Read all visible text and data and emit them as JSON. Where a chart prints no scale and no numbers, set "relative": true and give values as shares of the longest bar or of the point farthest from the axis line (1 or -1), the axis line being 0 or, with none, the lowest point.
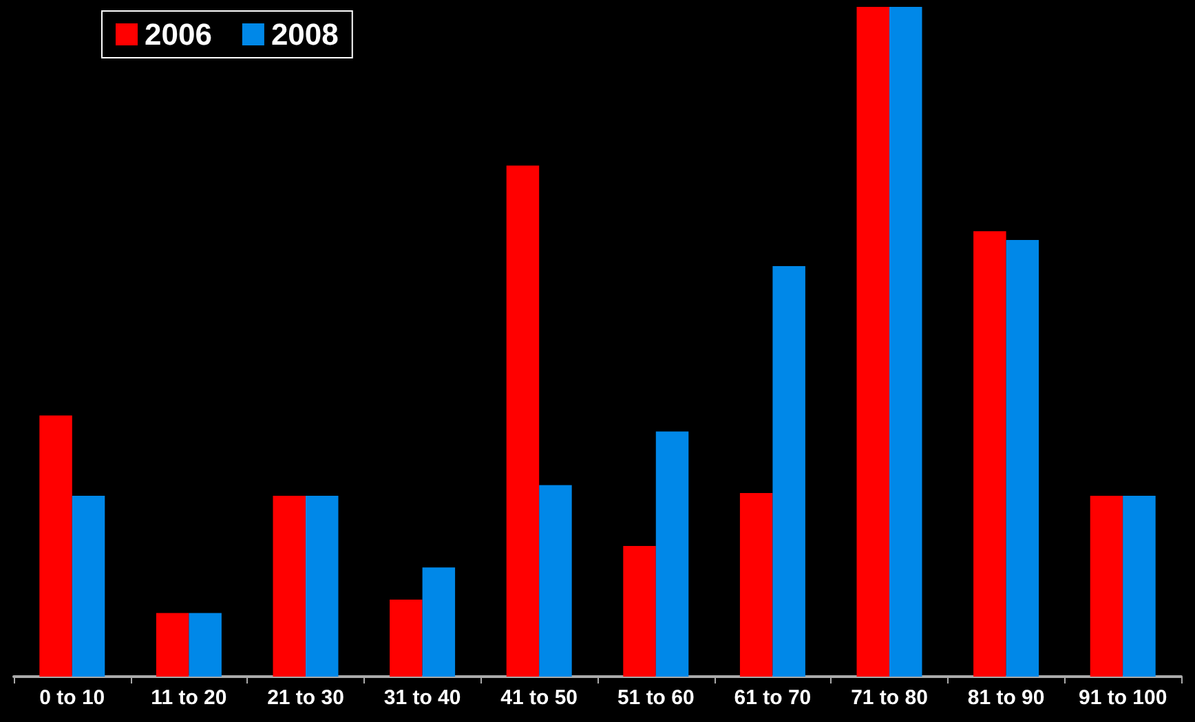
{
  "chart_data": {
    "type": "bar",
    "relative": true,
    "legend": "top left",
    "categories": [
      "0 to 10",
      "11 to 20",
      "21 to 30",
      "31 to 40",
      "41 to 50",
      "51 to 60",
      "61 to 70",
      "71 to 80",
      "81 to 90",
      "91 to 100"
    ],
    "series": [
      {
        "name": "2006",
        "color": "#ff0000",
        "values": [
          0.39,
          0.095,
          0.27,
          0.115,
          0.763,
          0.195,
          0.274,
          1,
          0.665,
          0.27
        ]
      },
      {
        "name": "2008",
        "color": "#0088e8",
        "values": [
          0.27,
          0.095,
          0.27,
          0.163,
          0.286,
          0.366,
          0.613,
          1,
          0.652,
          0.27
        ]
      }
    ]
  }
}
